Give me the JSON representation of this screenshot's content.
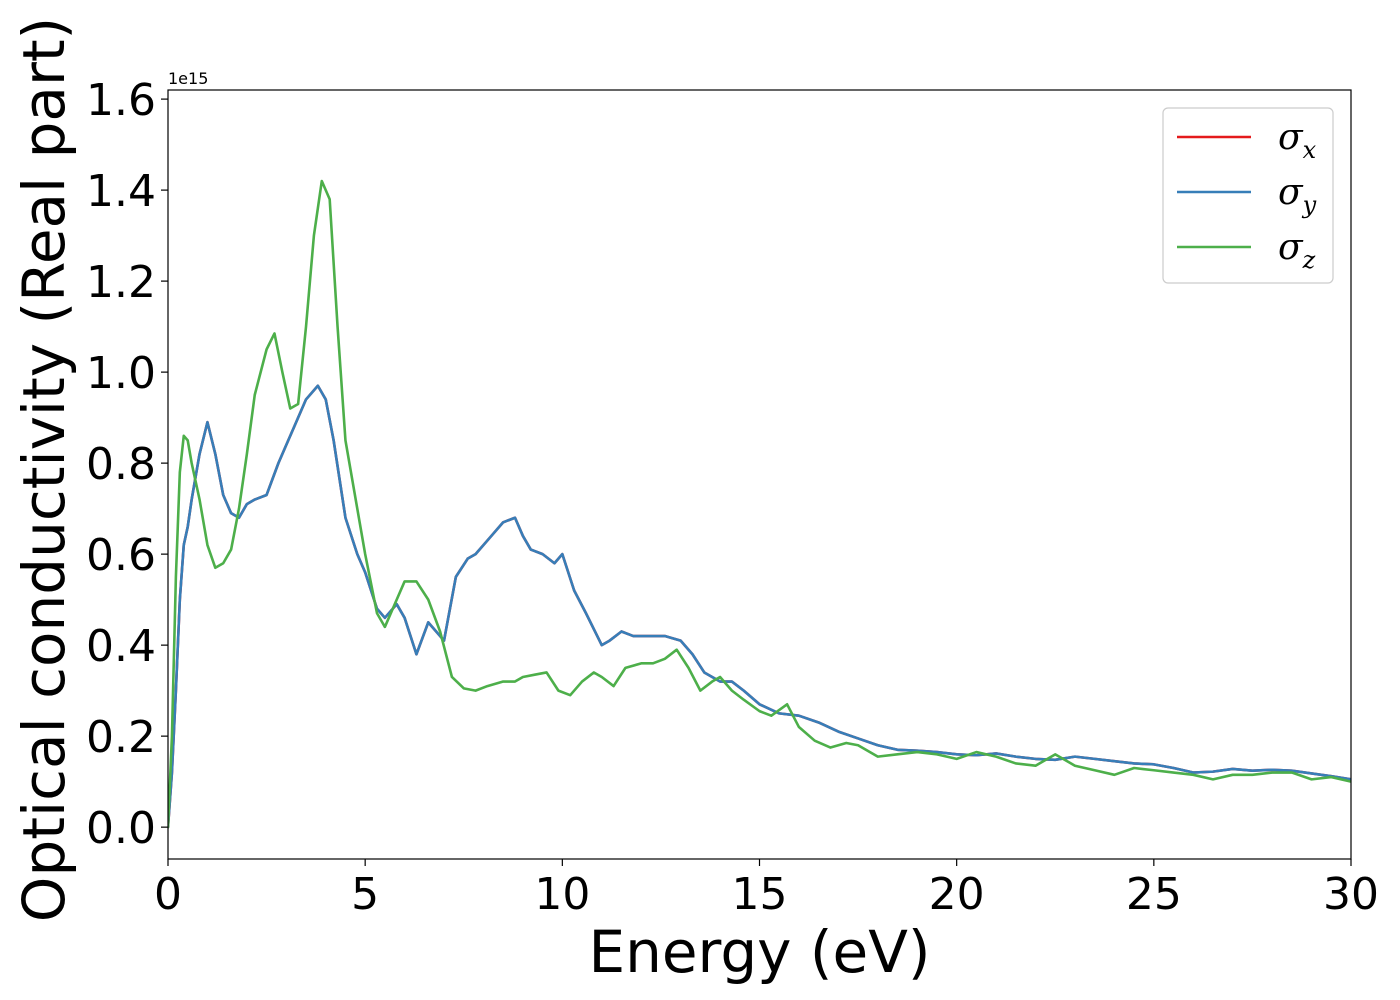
{
  "chart_data": {
    "type": "line",
    "title": "",
    "xlabel": "Energy (eV)",
    "ylabel": "Optical conductivity (Real part)",
    "y_offset_label": "1e15",
    "xlim": [
      0,
      30
    ],
    "ylim": [
      -0.07,
      1.62
    ],
    "xticks": [
      0,
      5,
      10,
      15,
      20,
      25,
      30
    ],
    "xtick_labels": [
      "0",
      "5",
      "10",
      "15",
      "20",
      "25",
      "30"
    ],
    "yticks": [
      0.0,
      0.2,
      0.4,
      0.6,
      0.8,
      1.0,
      1.2,
      1.4,
      1.6
    ],
    "ytick_labels": [
      "0.0",
      "0.2",
      "0.4",
      "0.6",
      "0.8",
      "1.0",
      "1.2",
      "1.4",
      "1.6"
    ],
    "grid": false,
    "legend_position": "top-right",
    "series": [
      {
        "name": "σx",
        "legend_symbol": "σ",
        "legend_sub": "x",
        "color": "#e41a1c",
        "x": [
          0,
          0.1,
          0.2,
          0.3,
          0.4,
          0.5,
          0.6,
          0.8,
          1.0,
          1.2,
          1.4,
          1.6,
          1.8,
          2.0,
          2.2,
          2.5,
          2.8,
          3.0,
          3.2,
          3.5,
          3.8,
          4.0,
          4.2,
          4.5,
          4.8,
          5.0,
          5.3,
          5.5,
          5.8,
          6.0,
          6.3,
          6.6,
          7.0,
          7.3,
          7.6,
          7.8,
          8.2,
          8.5,
          8.8,
          9.0,
          9.2,
          9.5,
          9.8,
          10.0,
          10.3,
          10.6,
          11.0,
          11.2,
          11.5,
          11.8,
          12.2,
          12.6,
          13.0,
          13.3,
          13.6,
          14.0,
          14.3,
          14.6,
          15.0,
          15.5,
          16.0,
          16.5,
          17.0,
          17.5,
          18.0,
          18.5,
          19.0,
          19.5,
          20.0,
          20.5,
          21.0,
          21.5,
          22.0,
          22.5,
          23.0,
          23.5,
          24.0,
          24.5,
          25.0,
          25.5,
          26.0,
          26.5,
          27.0,
          27.5,
          28.0,
          28.5,
          29.0,
          29.5,
          30.0
        ],
        "y": [
          0.0,
          0.12,
          0.3,
          0.5,
          0.62,
          0.66,
          0.72,
          0.82,
          0.89,
          0.82,
          0.73,
          0.69,
          0.68,
          0.71,
          0.72,
          0.73,
          0.8,
          0.84,
          0.88,
          0.94,
          0.97,
          0.94,
          0.85,
          0.68,
          0.6,
          0.56,
          0.48,
          0.46,
          0.49,
          0.46,
          0.38,
          0.45,
          0.41,
          0.55,
          0.59,
          0.6,
          0.64,
          0.67,
          0.68,
          0.64,
          0.61,
          0.6,
          0.58,
          0.6,
          0.52,
          0.47,
          0.4,
          0.41,
          0.43,
          0.42,
          0.42,
          0.42,
          0.41,
          0.38,
          0.34,
          0.32,
          0.32,
          0.3,
          0.27,
          0.25,
          0.245,
          0.23,
          0.21,
          0.195,
          0.18,
          0.17,
          0.168,
          0.165,
          0.16,
          0.158,
          0.162,
          0.155,
          0.15,
          0.148,
          0.155,
          0.15,
          0.145,
          0.14,
          0.138,
          0.13,
          0.12,
          0.122,
          0.128,
          0.124,
          0.126,
          0.124,
          0.118,
          0.112,
          0.105
        ]
      },
      {
        "name": "σy",
        "legend_symbol": "σ",
        "legend_sub": "y",
        "color": "#377eb8",
        "x": [
          0,
          0.1,
          0.2,
          0.3,
          0.4,
          0.5,
          0.6,
          0.8,
          1.0,
          1.2,
          1.4,
          1.6,
          1.8,
          2.0,
          2.2,
          2.5,
          2.8,
          3.0,
          3.2,
          3.5,
          3.8,
          4.0,
          4.2,
          4.5,
          4.8,
          5.0,
          5.3,
          5.5,
          5.8,
          6.0,
          6.3,
          6.6,
          7.0,
          7.3,
          7.6,
          7.8,
          8.2,
          8.5,
          8.8,
          9.0,
          9.2,
          9.5,
          9.8,
          10.0,
          10.3,
          10.6,
          11.0,
          11.2,
          11.5,
          11.8,
          12.2,
          12.6,
          13.0,
          13.3,
          13.6,
          14.0,
          14.3,
          14.6,
          15.0,
          15.5,
          16.0,
          16.5,
          17.0,
          17.5,
          18.0,
          18.5,
          19.0,
          19.5,
          20.0,
          20.5,
          21.0,
          21.5,
          22.0,
          22.5,
          23.0,
          23.5,
          24.0,
          24.5,
          25.0,
          25.5,
          26.0,
          26.5,
          27.0,
          27.5,
          28.0,
          28.5,
          29.0,
          29.5,
          30.0
        ],
        "y": [
          0.0,
          0.12,
          0.3,
          0.5,
          0.62,
          0.66,
          0.72,
          0.82,
          0.89,
          0.82,
          0.73,
          0.69,
          0.68,
          0.71,
          0.72,
          0.73,
          0.8,
          0.84,
          0.88,
          0.94,
          0.97,
          0.94,
          0.85,
          0.68,
          0.6,
          0.56,
          0.48,
          0.46,
          0.49,
          0.46,
          0.38,
          0.45,
          0.41,
          0.55,
          0.59,
          0.6,
          0.64,
          0.67,
          0.68,
          0.64,
          0.61,
          0.6,
          0.58,
          0.6,
          0.52,
          0.47,
          0.4,
          0.41,
          0.43,
          0.42,
          0.42,
          0.42,
          0.41,
          0.38,
          0.34,
          0.32,
          0.32,
          0.3,
          0.27,
          0.25,
          0.245,
          0.23,
          0.21,
          0.195,
          0.18,
          0.17,
          0.168,
          0.165,
          0.16,
          0.158,
          0.162,
          0.155,
          0.15,
          0.148,
          0.155,
          0.15,
          0.145,
          0.14,
          0.138,
          0.13,
          0.12,
          0.122,
          0.128,
          0.124,
          0.126,
          0.124,
          0.118,
          0.112,
          0.105
        ]
      },
      {
        "name": "σz",
        "legend_symbol": "σ",
        "legend_sub": "z",
        "color": "#4daf4a",
        "x": [
          0,
          0.1,
          0.2,
          0.3,
          0.4,
          0.5,
          0.6,
          0.8,
          1.0,
          1.2,
          1.4,
          1.6,
          1.8,
          2.0,
          2.2,
          2.5,
          2.7,
          2.9,
          3.1,
          3.3,
          3.5,
          3.7,
          3.9,
          4.1,
          4.3,
          4.5,
          4.8,
          5.0,
          5.3,
          5.5,
          5.8,
          6.0,
          6.3,
          6.6,
          6.9,
          7.2,
          7.5,
          7.8,
          8.1,
          8.5,
          8.8,
          9.0,
          9.3,
          9.6,
          9.9,
          10.2,
          10.5,
          10.8,
          11.0,
          11.3,
          11.6,
          12.0,
          12.3,
          12.6,
          12.9,
          13.2,
          13.5,
          13.8,
          14.0,
          14.3,
          14.6,
          15.0,
          15.3,
          15.7,
          16.0,
          16.4,
          16.8,
          17.2,
          17.5,
          18.0,
          18.5,
          19.0,
          19.5,
          20.0,
          20.5,
          21.0,
          21.5,
          22.0,
          22.5,
          23.0,
          23.5,
          24.0,
          24.5,
          25.0,
          25.5,
          26.0,
          26.5,
          27.0,
          27.5,
          28.0,
          28.5,
          29.0,
          29.5,
          30.0
        ],
        "y": [
          0.0,
          0.2,
          0.55,
          0.78,
          0.86,
          0.85,
          0.8,
          0.72,
          0.62,
          0.57,
          0.58,
          0.61,
          0.7,
          0.82,
          0.95,
          1.05,
          1.085,
          1.0,
          0.92,
          0.93,
          1.1,
          1.3,
          1.42,
          1.38,
          1.1,
          0.85,
          0.7,
          0.6,
          0.47,
          0.44,
          0.5,
          0.54,
          0.54,
          0.5,
          0.43,
          0.33,
          0.305,
          0.3,
          0.31,
          0.32,
          0.32,
          0.33,
          0.335,
          0.34,
          0.3,
          0.29,
          0.32,
          0.34,
          0.33,
          0.31,
          0.35,
          0.36,
          0.36,
          0.37,
          0.39,
          0.35,
          0.3,
          0.32,
          0.33,
          0.3,
          0.28,
          0.255,
          0.245,
          0.27,
          0.22,
          0.19,
          0.175,
          0.185,
          0.18,
          0.155,
          0.16,
          0.165,
          0.16,
          0.15,
          0.165,
          0.155,
          0.14,
          0.135,
          0.16,
          0.135,
          0.125,
          0.115,
          0.13,
          0.125,
          0.12,
          0.115,
          0.105,
          0.115,
          0.115,
          0.12,
          0.12,
          0.105,
          0.11,
          0.1
        ]
      }
    ]
  }
}
